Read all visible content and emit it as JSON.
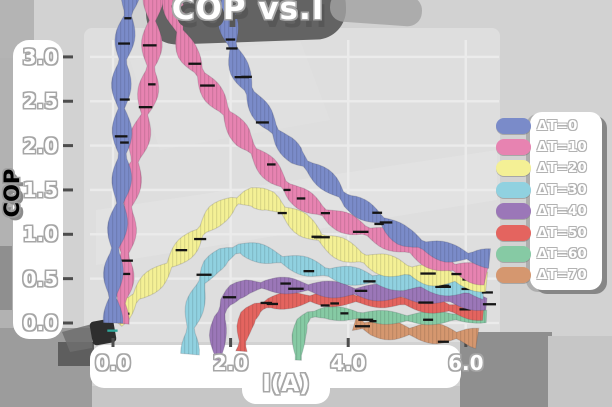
{
  "title": "COP vs.I",
  "axes": {
    "xlabel": "I(A)",
    "ylabel": "COP",
    "x_ticks": [
      "0.0",
      "2.0",
      "4.0",
      "6.0"
    ],
    "y_ticks": [
      "3.0",
      "2.5",
      "2.0",
      "1.5",
      "1.0",
      "0.5",
      "0.0"
    ]
  },
  "legend": {
    "entries": [
      {
        "label": "ΔT=0",
        "color": "#7a8bc9"
      },
      {
        "label": "ΔT=10",
        "color": "#e783b1"
      },
      {
        "label": "ΔT=20",
        "color": "#f4f095"
      },
      {
        "label": "ΔT=30",
        "color": "#90d1e0"
      },
      {
        "label": "ΔT=40",
        "color": "#9b77b8"
      },
      {
        "label": "ΔT=50",
        "color": "#e4645f"
      },
      {
        "label": "ΔT=60",
        "color": "#86caa4"
      },
      {
        "label": "ΔT=70",
        "color": "#d5976f"
      }
    ]
  },
  "chart_data": {
    "type": "line",
    "title": "COP vs.I",
    "xlabel": "I(A)",
    "ylabel": "COP",
    "xlim": [
      -0.3,
      6.6
    ],
    "ylim": [
      -0.4,
      3.35
    ],
    "x_axis_ticks": [
      0,
      2,
      4,
      6
    ],
    "y_axis_ticks": [
      0,
      0.5,
      1.0,
      1.5,
      2.0,
      2.5,
      3.0
    ],
    "grid": true,
    "legend_position": "center right",
    "style": "hand-drawn sketch ribbons, peak COP curves of a thermoelectric cooler vs current",
    "series": [
      {
        "name": "ΔT=0",
        "color": "#7a8bc9",
        "width": 8.5,
        "segments": [
          [
            [
              0.02,
              0.0
            ],
            [
              0.06,
              0.9
            ],
            [
              0.12,
              1.8
            ],
            [
              0.18,
              2.7
            ],
            [
              0.24,
              3.35
            ],
            [
              0.28,
              3.75
            ]
          ],
          [
            [
              1.85,
              3.7
            ],
            [
              1.95,
              3.4
            ],
            [
              2.05,
              3.15
            ],
            [
              2.2,
              2.85
            ],
            [
              2.4,
              2.55
            ],
            [
              2.6,
              2.3
            ],
            [
              2.85,
              2.05
            ],
            [
              3.1,
              1.85
            ],
            [
              3.4,
              1.7
            ],
            [
              3.7,
              1.55
            ],
            [
              4.0,
              1.38
            ],
            [
              4.3,
              1.28
            ],
            [
              4.6,
              1.18
            ],
            [
              4.95,
              1.0
            ],
            [
              5.3,
              0.88
            ],
            [
              5.7,
              0.78
            ],
            [
              6.1,
              0.72
            ],
            [
              6.4,
              0.7
            ]
          ]
        ]
      },
      {
        "name": "ΔT=10",
        "color": "#e783b1",
        "width": 9,
        "segments": [
          [
            [
              0.07,
              0.0
            ],
            [
              0.2,
              0.85
            ],
            [
              0.35,
              1.6
            ],
            [
              0.5,
              2.3
            ],
            [
              0.62,
              2.95
            ],
            [
              0.73,
              3.75
            ]
          ],
          [
            [
              1.0,
              3.7
            ],
            [
              1.15,
              3.35
            ],
            [
              1.3,
              3.05
            ],
            [
              1.5,
              2.8
            ],
            [
              1.7,
              2.55
            ],
            [
              1.95,
              2.3
            ],
            [
              2.2,
              2.05
            ],
            [
              2.5,
              1.85
            ],
            [
              2.8,
              1.65
            ],
            [
              3.1,
              1.48
            ],
            [
              3.4,
              1.35
            ],
            [
              3.75,
              1.2
            ],
            [
              4.1,
              1.08
            ],
            [
              4.5,
              0.97
            ],
            [
              4.9,
              0.85
            ],
            [
              5.3,
              0.74
            ],
            [
              5.8,
              0.63
            ],
            [
              6.35,
              0.55
            ]
          ]
        ]
      },
      {
        "name": "ΔT=20",
        "color": "#f4f095",
        "width": 9.5,
        "segments": [
          [
            [
              0.05,
              0.02
            ],
            [
              0.35,
              0.25
            ],
            [
              0.7,
              0.5
            ],
            [
              1.05,
              0.75
            ],
            [
              1.4,
              1.0
            ],
            [
              1.75,
              1.22
            ],
            [
              2.05,
              1.35
            ],
            [
              2.35,
              1.4
            ],
            [
              2.65,
              1.35
            ],
            [
              2.95,
              1.22
            ],
            [
              3.25,
              1.08
            ],
            [
              3.6,
              0.94
            ],
            [
              4.0,
              0.82
            ],
            [
              4.45,
              0.71
            ],
            [
              4.9,
              0.62
            ],
            [
              5.4,
              0.53
            ],
            [
              5.9,
              0.47
            ],
            [
              6.35,
              0.44
            ]
          ]
        ]
      },
      {
        "name": "ΔT=30",
        "color": "#90d1e0",
        "width": 8,
        "segments": [
          [
            [
              1.28,
              -0.35
            ],
            [
              1.32,
              -0.05
            ],
            [
              1.42,
              0.2
            ],
            [
              1.55,
              0.45
            ],
            [
              1.7,
              0.62
            ],
            [
              1.9,
              0.75
            ],
            [
              2.15,
              0.83
            ],
            [
              2.45,
              0.8
            ],
            [
              2.8,
              0.75
            ],
            [
              3.2,
              0.68
            ],
            [
              3.6,
              0.6
            ],
            [
              4.0,
              0.54
            ],
            [
              4.4,
              0.48
            ],
            [
              4.9,
              0.44
            ],
            [
              5.4,
              0.41
            ],
            [
              5.9,
              0.39
            ],
            [
              6.3,
              0.38
            ]
          ]
        ]
      },
      {
        "name": "ΔT=40",
        "color": "#9b77b8",
        "width": 7,
        "segments": [
          [
            [
              1.78,
              -0.42
            ],
            [
              1.8,
              -0.15
            ],
            [
              1.85,
              0.05
            ],
            [
              1.95,
              0.22
            ],
            [
              2.1,
              0.33
            ],
            [
              2.3,
              0.39
            ],
            [
              2.6,
              0.42
            ],
            [
              3.0,
              0.43
            ],
            [
              3.4,
              0.42
            ],
            [
              3.8,
              0.4
            ],
            [
              4.2,
              0.37
            ],
            [
              4.6,
              0.34
            ],
            [
              5.0,
              0.31
            ],
            [
              5.4,
              0.28
            ],
            [
              5.9,
              0.24
            ],
            [
              6.35,
              0.21
            ]
          ]
        ]
      },
      {
        "name": "ΔT=50",
        "color": "#e4645f",
        "width": 7,
        "segments": [
          [
            [
              2.22,
              -0.32
            ],
            [
              2.25,
              -0.05
            ],
            [
              2.3,
              0.08
            ],
            [
              2.45,
              0.18
            ],
            [
              2.65,
              0.24
            ],
            [
              2.95,
              0.28
            ],
            [
              3.35,
              0.3
            ],
            [
              3.8,
              0.29
            ],
            [
              4.3,
              0.26
            ],
            [
              4.8,
              0.23
            ],
            [
              5.3,
              0.19
            ],
            [
              5.8,
              0.16
            ],
            [
              6.3,
              0.13
            ]
          ]
        ]
      },
      {
        "name": "ΔT=60",
        "color": "#86caa4",
        "width": 5.5,
        "segments": [
          [
            [
              3.18,
              -0.42
            ],
            [
              3.2,
              -0.15
            ],
            [
              3.25,
              0.0
            ],
            [
              3.35,
              0.07
            ],
            [
              3.6,
              0.1
            ],
            [
              4.0,
              0.1
            ],
            [
              4.5,
              0.09
            ],
            [
              5.0,
              0.08
            ],
            [
              5.5,
              0.07
            ],
            [
              6.0,
              0.06
            ],
            [
              6.35,
              0.05
            ]
          ]
        ]
      },
      {
        "name": "ΔT=70",
        "color": "#d5976f",
        "width": 9,
        "segments": [
          [
            [
              4.1,
              -0.02
            ],
            [
              4.4,
              -0.08
            ],
            [
              4.8,
              -0.11
            ],
            [
              5.2,
              -0.12
            ],
            [
              5.6,
              -0.12
            ],
            [
              6.0,
              -0.13
            ],
            [
              6.2,
              -0.15
            ]
          ]
        ]
      }
    ]
  }
}
